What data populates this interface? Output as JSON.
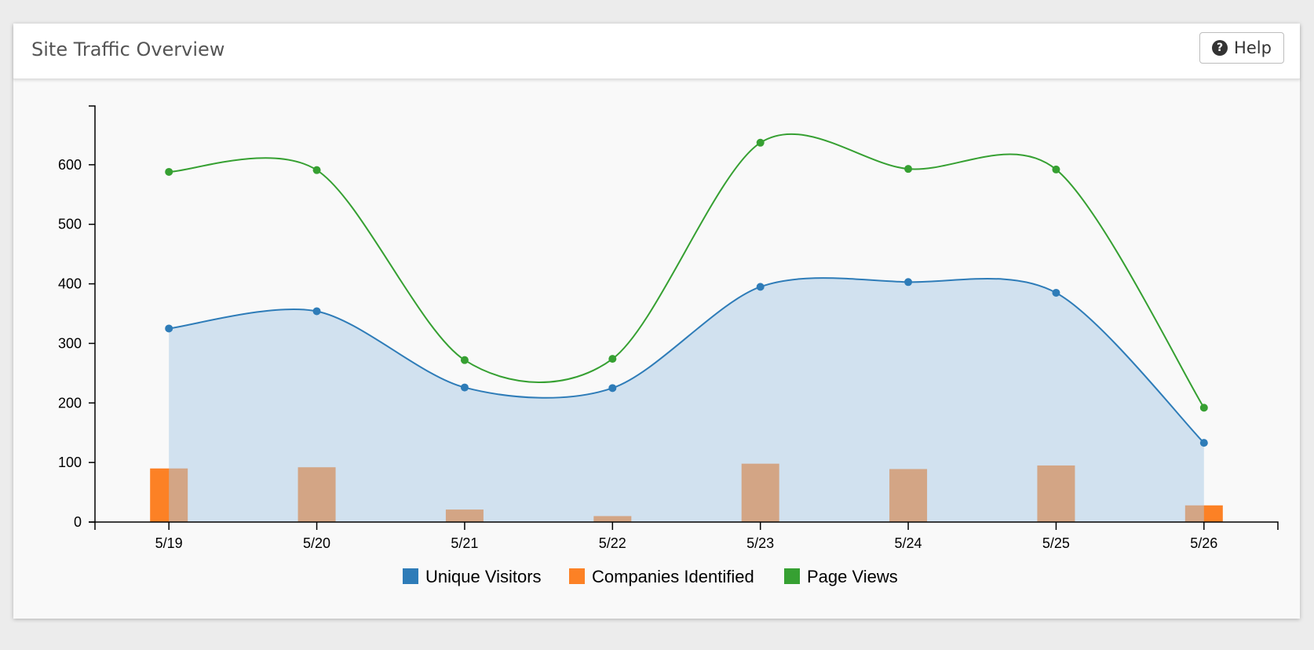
{
  "header": {
    "title": "Site Traffic Overview",
    "help_label": "Help",
    "help_icon": "question-circle-icon"
  },
  "chart_data": {
    "type": "line",
    "categories": [
      "5/19",
      "5/20",
      "5/21",
      "5/22",
      "5/23",
      "5/24",
      "5/25",
      "5/26"
    ],
    "ylim": [
      0,
      700
    ],
    "yticks": [
      0,
      100,
      200,
      300,
      400,
      500,
      600
    ],
    "grid": false,
    "legend_position": "bottom-center",
    "series": [
      {
        "name": "Unique Visitors",
        "type": "area",
        "color": "#2e7cb8",
        "values": [
          325,
          354,
          226,
          225,
          395,
          403,
          385,
          133
        ]
      },
      {
        "name": "Companies Identified",
        "type": "bar",
        "color": "#fc8125",
        "values": [
          90,
          92,
          21,
          10,
          98,
          89,
          95,
          28
        ]
      },
      {
        "name": "Page Views",
        "type": "line",
        "color": "#36a032",
        "values": [
          588,
          591,
          272,
          274,
          637,
          593,
          592,
          192
        ]
      }
    ]
  }
}
